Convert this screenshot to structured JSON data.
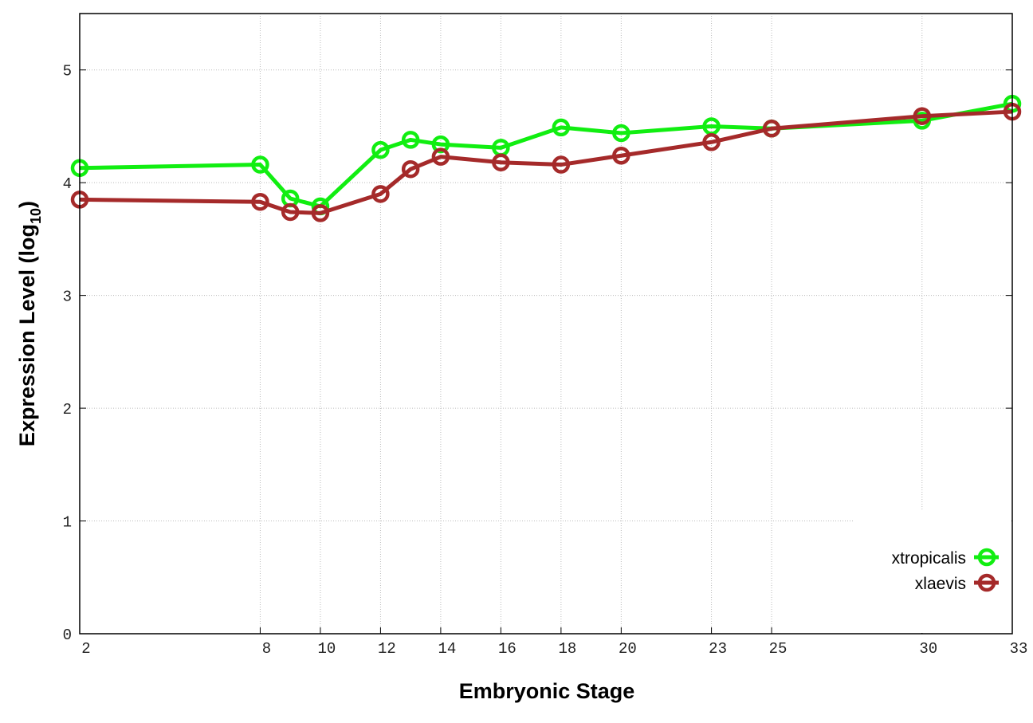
{
  "chart_data": {
    "type": "line",
    "title": "",
    "xlabel": "Embryonic Stage",
    "ylabel": "Expression Level (log",
    "ylabel_sub": "10",
    "ylabel_end": ")",
    "xlim": [
      2,
      33
    ],
    "ylim": [
      0,
      5.5
    ],
    "x_ticks": [
      2,
      8,
      10,
      12,
      14,
      16,
      18,
      20,
      23,
      25,
      30,
      33
    ],
    "y_ticks": [
      0,
      1,
      2,
      3,
      4,
      5
    ],
    "grid": true,
    "legend_position": "bottom-right",
    "x": [
      2,
      8,
      9,
      10,
      12,
      13,
      14,
      16,
      18,
      20,
      23,
      25,
      30,
      33
    ],
    "series": [
      {
        "name": "xtropicalis",
        "color": "#11ee11",
        "values": [
          4.13,
          4.16,
          3.86,
          3.79,
          4.29,
          4.38,
          4.34,
          4.31,
          4.49,
          4.44,
          4.5,
          4.48,
          4.55,
          4.7
        ]
      },
      {
        "name": "xlaevis",
        "color": "#a52a2a",
        "values": [
          3.85,
          3.83,
          3.74,
          3.73,
          3.9,
          4.12,
          4.23,
          4.18,
          4.16,
          4.24,
          4.36,
          4.48,
          4.59,
          4.63
        ]
      }
    ]
  }
}
